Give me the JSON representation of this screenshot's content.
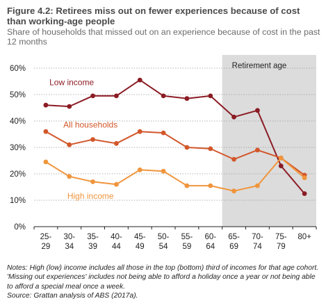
{
  "title": "Figure 4.2: Retirees miss out on fewer experiences because of cost than working-age people",
  "subtitle": "Share of households that missed out on an experience because of cost in the past 12 months",
  "notes": "Notes: High (low) income includes all those in the top (bottom) third of incomes for that age cohort. 'Missing out experiences' includes not being able to afford a holiday once a year or not being able to afford a special meal once a week.",
  "source": "Source: Grattan analysis of ABS (2017a).",
  "chart_data": {
    "type": "line",
    "categories": [
      [
        "25-",
        "29"
      ],
      [
        "30-",
        "34"
      ],
      [
        "35-",
        "39"
      ],
      [
        "40-",
        "44"
      ],
      [
        "45-",
        "49"
      ],
      [
        "50-",
        "54"
      ],
      [
        "55-",
        "59"
      ],
      [
        "60-",
        "64"
      ],
      [
        "65-",
        "69"
      ],
      [
        "70-",
        "74"
      ],
      [
        "75-",
        "79"
      ],
      [
        "80+",
        ""
      ]
    ],
    "y_ticks": [
      "0%",
      "10%",
      "20%",
      "30%",
      "40%",
      "50%",
      "60%"
    ],
    "ylim": [
      0,
      60
    ],
    "grid": true,
    "shaded_region": {
      "label": "Retirement age",
      "from_category": "65-69",
      "to_category": "80+"
    },
    "series": [
      {
        "name": "Low income",
        "color": "#8b1c24",
        "values": [
          46,
          45.5,
          49.5,
          49.5,
          55.5,
          49.5,
          48.5,
          49.5,
          41.5,
          44,
          23,
          12.5
        ]
      },
      {
        "name": "All households",
        "color": "#d2572b",
        "values": [
          36,
          31,
          33,
          31.5,
          36,
          35.5,
          30,
          29.5,
          25.5,
          29,
          26,
          19.5
        ]
      },
      {
        "name": "High income",
        "color": "#f0953c",
        "values": [
          24.5,
          19,
          17,
          16,
          21.5,
          21,
          15.5,
          15.5,
          13.5,
          15.5,
          26,
          18.5
        ]
      }
    ]
  }
}
